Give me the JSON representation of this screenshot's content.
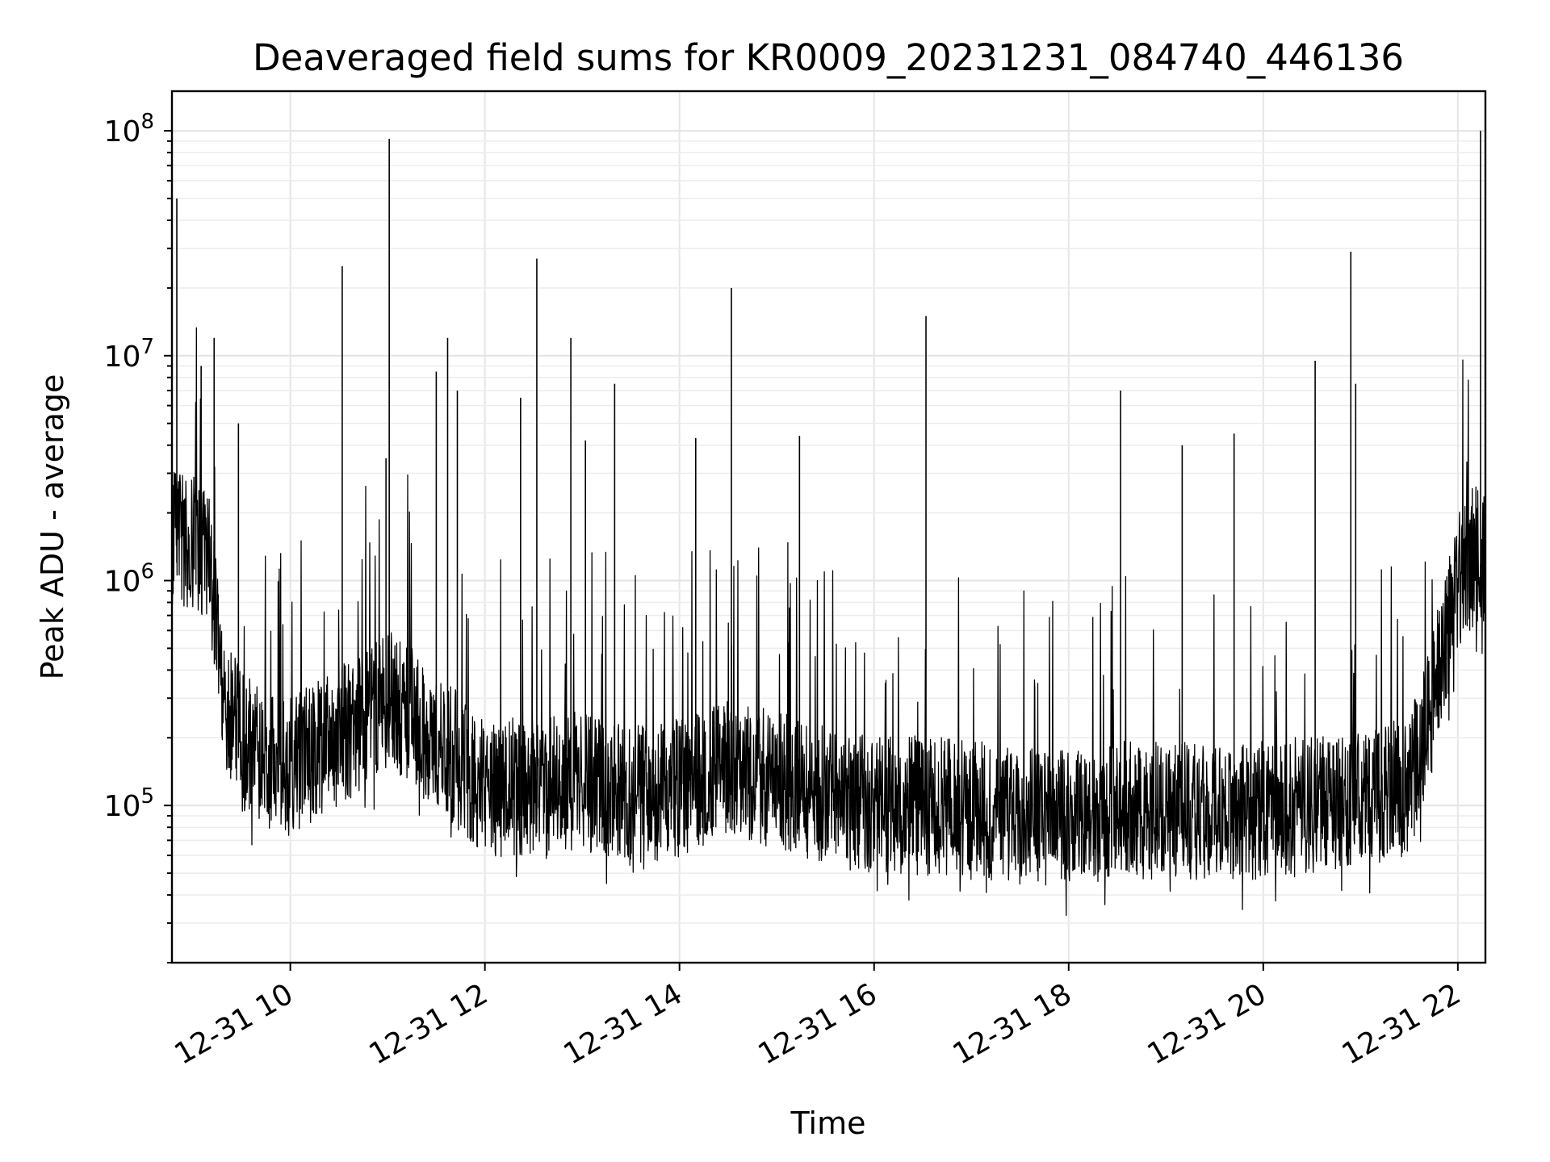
{
  "chart_data": {
    "type": "line",
    "title": "Deaveraged field sums for KR0009_20231231_084740_446136",
    "xlabel": "Time",
    "ylabel": "Peak ADU - average",
    "x_ticks": [
      "12-31 10",
      "12-31 12",
      "12-31 14",
      "12-31 16",
      "12-31 18",
      "12-31 20",
      "12-31 22"
    ],
    "y_ticks": [
      {
        "base": "10",
        "exp": "5",
        "value": 100000
      },
      {
        "base": "10",
        "exp": "6",
        "value": 1000000
      },
      {
        "base": "10",
        "exp": "7",
        "value": 10000000
      },
      {
        "base": "10",
        "exp": "8",
        "value": 100000000
      }
    ],
    "y_scale": "log",
    "xlim": [
      "2023-12-31 08:47",
      "2023-12-31 22:17"
    ],
    "ylim": [
      20000,
      150000000
    ],
    "grid": true,
    "line_color": "#000000",
    "series": [
      {
        "x": [
          "2023-12-31 08:47",
          "2023-12-31 08:50",
          "2023-12-31 09:00",
          "2023-12-31 09:10",
          "2023-12-31 09:20",
          "2023-12-31 09:30",
          "2023-12-31 09:45",
          "2023-12-31 10:00",
          "2023-12-31 10:30",
          "2023-12-31 11:00",
          "2023-12-31 11:30",
          "2023-12-31 12:00",
          "2023-12-31 12:30",
          "2023-12-31 13:00",
          "2023-12-31 13:30",
          "2023-12-31 14:00",
          "2023-12-31 14:30",
          "2023-12-31 15:00",
          "2023-12-31 15:30",
          "2023-12-31 16:00",
          "2023-12-31 16:30",
          "2023-12-31 17:00",
          "2023-12-31 17:30",
          "2023-12-31 18:00",
          "2023-12-31 18:30",
          "2023-12-31 19:00",
          "2023-12-31 19:30",
          "2023-12-31 20:00",
          "2023-12-31 20:30",
          "2023-12-31 21:00",
          "2023-12-31 21:30",
          "2023-12-31 21:45",
          "2023-12-31 22:00",
          "2023-12-31 22:10",
          "2023-12-31 22:17"
        ],
        "y": [
          1500000,
          1600000,
          1500000,
          1200000,
          300000,
          200000,
          150000,
          150000,
          200000,
          300000,
          200000,
          120000,
          120000,
          130000,
          110000,
          120000,
          150000,
          130000,
          110000,
          100000,
          100000,
          95000,
          90000,
          90000,
          95000,
          95000,
          95000,
          95000,
          100000,
          110000,
          120000,
          300000,
          1000000,
          1300000,
          1200000
        ]
      }
    ],
    "spikes": [
      {
        "x": "2023-12-31 08:50",
        "y": 50000000
      },
      {
        "x": "2023-12-31 09:05",
        "y": 9000000
      },
      {
        "x": "2023-12-31 09:13",
        "y": 12000000
      },
      {
        "x": "2023-12-31 09:28",
        "y": 5000000
      },
      {
        "x": "2023-12-31 10:32",
        "y": 25000000
      },
      {
        "x": "2023-12-31 10:59",
        "y": 3500000
      },
      {
        "x": "2023-12-31 11:01",
        "y": 92000000
      },
      {
        "x": "2023-12-31 11:30",
        "y": 8500000
      },
      {
        "x": "2023-12-31 11:37",
        "y": 12000000
      },
      {
        "x": "2023-12-31 11:43",
        "y": 7000000
      },
      {
        "x": "2023-12-31 12:22",
        "y": 6500000
      },
      {
        "x": "2023-12-31 12:32",
        "y": 27000000
      },
      {
        "x": "2023-12-31 12:53",
        "y": 12000000
      },
      {
        "x": "2023-12-31 13:02",
        "y": 4200000
      },
      {
        "x": "2023-12-31 13:20",
        "y": 7500000
      },
      {
        "x": "2023-12-31 14:10",
        "y": 4300000
      },
      {
        "x": "2023-12-31 14:32",
        "y": 20000000
      },
      {
        "x": "2023-12-31 15:14",
        "y": 4400000
      },
      {
        "x": "2023-12-31 16:32",
        "y": 15000000
      },
      {
        "x": "2023-12-31 18:32",
        "y": 7000000
      },
      {
        "x": "2023-12-31 19:10",
        "y": 4000000
      },
      {
        "x": "2023-12-31 19:42",
        "y": 4500000
      },
      {
        "x": "2023-12-31 20:32",
        "y": 9500000
      },
      {
        "x": "2023-12-31 20:54",
        "y": 29000000
      },
      {
        "x": "2023-12-31 20:57",
        "y": 7500000
      },
      {
        "x": "2023-12-31 22:14",
        "y": 100000000
      }
    ]
  }
}
